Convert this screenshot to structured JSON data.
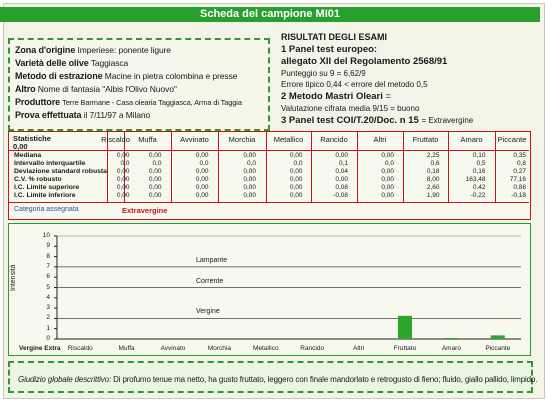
{
  "header": {
    "title": "Scheda del campione MI01"
  },
  "origin": {
    "zona_label": "Zona d'origine",
    "zona_value": "Imperiese: ponente ligure",
    "varieta_label": "Varietà delle olive",
    "varieta_value": "Taggiasca",
    "metodo_label": "Metodo di estrazione",
    "metodo_value": "Macine in pietra colombina e presse",
    "altro_label": "Altro",
    "altro_value": "Nome di fantasia \"Albis l'Olivo Nuovo\"",
    "produttore_label": "Produttore",
    "produttore_value": "Terre Barmane - Casa olearia Taggiasca, Arma di Taggia",
    "prova_label": "Prova effettuata",
    "prova_value": "il 7/11/97 a Milano"
  },
  "results": {
    "heading": "RISULTATI DEGLI ESAMI",
    "panel1_title": "1 Panel test europeo:",
    "panel1_sub": "allegato XII del Regolamento 2568/91",
    "punteggio": "Punteggio su 9 = 6,62/9",
    "errore": "Errore tipico 0,44 < errore del metodo 0,5",
    "metodo2": "2 Metodo Mastri Oleari",
    "metodo2_eq": "=",
    "valutazione": "Valutazione cifrata media 9/15 = buono",
    "panel3_title": "3 Panel test COI/T.20/Doc. n 15",
    "panel3_eq": "= Extravergine"
  },
  "table": {
    "corner_label": "Statistiche",
    "corner_value": "0,00",
    "columns": [
      "Riscaldo",
      "Muffa",
      "Avvinato",
      "Morchia",
      "Metallico",
      "Rancido",
      "Altri",
      "Fruttato",
      "Amaro",
      "Piccante"
    ],
    "rows": [
      {
        "label": "Mediana",
        "values": [
          "0,00",
          "0,00",
          "0,00",
          "0,00",
          "0,00",
          "0,00",
          "0,00",
          "2,25",
          "0,10",
          "0,35"
        ]
      },
      {
        "label": "Intervallo interquartile",
        "values": [
          "0,0",
          "0,0",
          "0,0",
          "0,0",
          "0,0",
          "0,1",
          "0,0",
          "0,6",
          "0,5",
          "0,8"
        ]
      },
      {
        "label": "Deviazione standard robusta",
        "values": [
          "0,00",
          "0,00",
          "0,00",
          "0,00",
          "0,00",
          "0,04",
          "0,00",
          "0,18",
          "0,16",
          "0,27"
        ]
      },
      {
        "label": "C.V. % robusto",
        "values": [
          "0,00",
          "0,00",
          "0,00",
          "0,00",
          "0,00",
          "0,00",
          "0,00",
          "8,00",
          "163,48",
          "77,16"
        ]
      },
      {
        "label": "I.C. Limite superiore",
        "values": [
          "0,00",
          "0,00",
          "0,00",
          "0,00",
          "0,00",
          "0,08",
          "0,00",
          "2,60",
          "0,42",
          "0,88"
        ]
      },
      {
        "label": "I.C. Limite inferiore",
        "values": [
          "0,00",
          "0,00",
          "0,00",
          "0,00",
          "0,00",
          "-0,08",
          "0,00",
          "1,90",
          "-0,22",
          "-0,18"
        ]
      }
    ],
    "category_label": "Categoria assegnata",
    "category_value": "Extravergine"
  },
  "chart_data": {
    "type": "bar",
    "ylabel": "Intensità",
    "ylim": [
      0,
      10
    ],
    "yticks": [
      "10",
      "9",
      "8",
      "7",
      "6",
      "5",
      "4",
      "3",
      "2",
      "1",
      "0"
    ],
    "bands": [
      {
        "label": "Lampante",
        "y": 7
      },
      {
        "label": "Corrente",
        "y": 5
      },
      {
        "label": "Vergine",
        "y": 2
      },
      {
        "label": "Vergine Extra",
        "y": 0
      }
    ],
    "categories": [
      "Riscaldo",
      "Muffa",
      "Avvinato",
      "Morchia",
      "Metallico",
      "Rancido",
      "Altri",
      "Fruttato",
      "Amaro",
      "Piccante"
    ],
    "values": [
      0,
      0,
      0,
      0,
      0,
      0,
      0,
      2.25,
      0.1,
      0.35
    ],
    "bar_color": "#2ea62d",
    "grid": false
  },
  "verdict": {
    "label": "Giudizio globale descrittivo:",
    "text": "Di profumo tenue ma netto, ha gusto fruttato, leggero con finale mandorlato e retrogusto di fieno; fluido, giallo pallido, limpido."
  },
  "colors": {
    "accent": "#27a02e",
    "table_border": "#c4161c",
    "category_label": "#2b55a8"
  }
}
